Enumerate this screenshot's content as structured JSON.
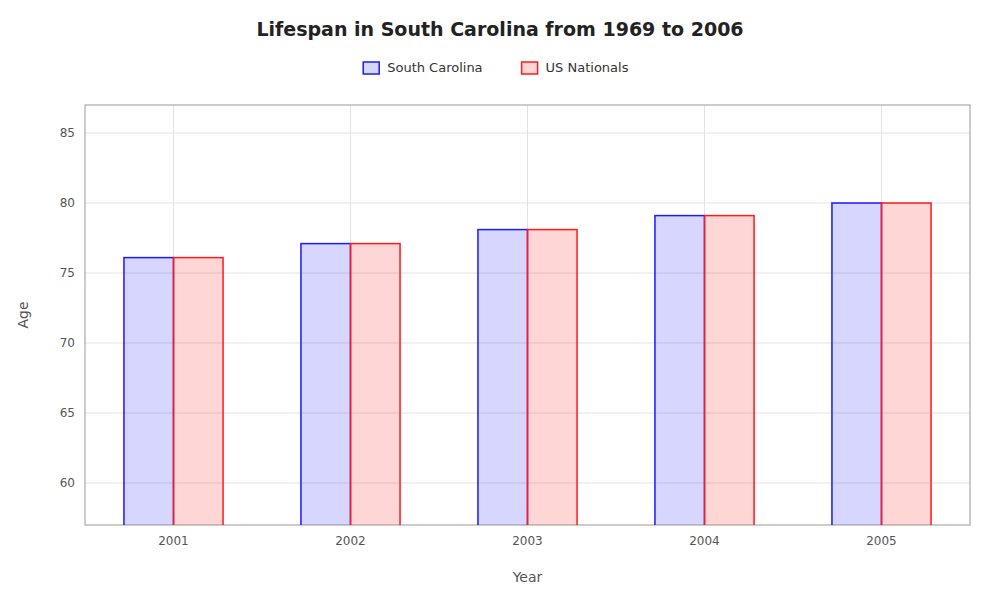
{
  "chart_data": {
    "type": "bar",
    "title": "Lifespan in South Carolina from 1969 to 2006",
    "xlabel": "Year",
    "ylabel": "Age",
    "categories": [
      "2001",
      "2002",
      "2003",
      "2004",
      "2005"
    ],
    "series": [
      {
        "name": "South Carolina",
        "color": "#1a1aff",
        "values": [
          76.1,
          77.1,
          78.1,
          79.1,
          80.0
        ]
      },
      {
        "name": "US Nationals",
        "color": "#ff1a1a",
        "values": [
          76.1,
          77.1,
          78.1,
          79.1,
          80.0
        ]
      }
    ],
    "ylim": [
      57,
      87
    ],
    "yticks": [
      60,
      65,
      70,
      75,
      80,
      85
    ],
    "grid": true,
    "legend": "top"
  }
}
